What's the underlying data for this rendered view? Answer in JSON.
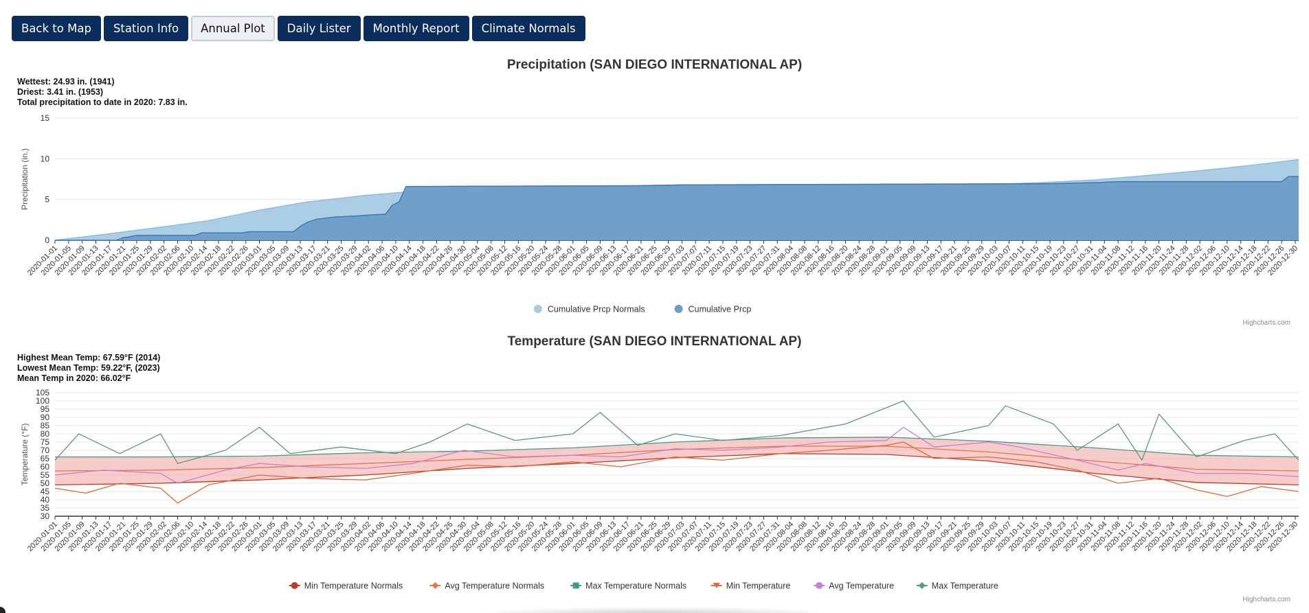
{
  "nav": {
    "buttons": [
      {
        "label": "Back to Map",
        "active": false
      },
      {
        "label": "Station Info",
        "active": false
      },
      {
        "label": "Annual Plot",
        "active": true
      },
      {
        "label": "Daily Lister",
        "active": false
      },
      {
        "label": "Monthly Report",
        "active": false
      },
      {
        "label": "Climate Normals",
        "active": false
      }
    ]
  },
  "precip": {
    "title": "Precipitation (SAN DIEGO INTERNATIONAL AP)",
    "notes": [
      "Wettest: 24.93 in. (1941)",
      "Driest: 3.41 in. (1953)",
      "Total precipitation to date in 2020: 7.83 in."
    ],
    "credit": "Highcharts.com"
  },
  "temp": {
    "title": "Temperature (SAN DIEGO INTERNATIONAL AP)",
    "notes": [
      "Highest Mean Temp: 67.59°F (2014)",
      "Lowest Mean Temp: 59.22°F, (2023)",
      "Mean Temp in 2020: 66.02°F"
    ],
    "credit": "Highcharts.com"
  },
  "chart_data": [
    {
      "type": "area",
      "title": "Precipitation (SAN DIEGO INTERNATIONAL AP)",
      "xlabel": "",
      "ylabel": "Precipitation (in.)",
      "ylim": [
        0,
        15
      ],
      "yticks": [
        0,
        5,
        10,
        15
      ],
      "grid": true,
      "legend_position": "bottom-center",
      "x_start": "2020-01-01",
      "x_end": "2020-12-31",
      "x_tick_interval_days": 4,
      "series": [
        {
          "name": "Cumulative Prcp Normals",
          "color": "#a8cbe4",
          "points": [
            [
              "2020-01-01",
              0
            ],
            [
              "2020-01-15",
              0.7
            ],
            [
              "2020-02-01",
              1.6
            ],
            [
              "2020-02-15",
              2.4
            ],
            [
              "2020-03-01",
              3.7
            ],
            [
              "2020-03-15",
              4.7
            ],
            [
              "2020-04-01",
              5.5
            ],
            [
              "2020-04-15",
              6.0
            ],
            [
              "2020-05-01",
              6.4
            ],
            [
              "2020-06-01",
              6.6
            ],
            [
              "2020-07-01",
              6.65
            ],
            [
              "2020-08-01",
              6.7
            ],
            [
              "2020-09-01",
              6.75
            ],
            [
              "2020-10-01",
              6.85
            ],
            [
              "2020-10-15",
              7.05
            ],
            [
              "2020-11-01",
              7.4
            ],
            [
              "2020-11-15",
              7.9
            ],
            [
              "2020-12-01",
              8.5
            ],
            [
              "2020-12-15",
              9.1
            ],
            [
              "2020-12-31",
              9.9
            ]
          ]
        },
        {
          "name": "Cumulative Prcp",
          "color": "#6c9dc8",
          "points": [
            [
              "2020-01-01",
              0
            ],
            [
              "2020-01-19",
              0
            ],
            [
              "2020-01-21",
              0.3
            ],
            [
              "2020-01-25",
              0.6
            ],
            [
              "2020-02-11",
              0.6
            ],
            [
              "2020-02-13",
              0.9
            ],
            [
              "2020-02-25",
              0.9
            ],
            [
              "2020-02-27",
              1.05
            ],
            [
              "2020-03-11",
              1.05
            ],
            [
              "2020-03-13",
              1.7
            ],
            [
              "2020-03-15",
              2.2
            ],
            [
              "2020-03-18",
              2.6
            ],
            [
              "2020-03-23",
              2.85
            ],
            [
              "2020-03-30",
              3.0
            ],
            [
              "2020-04-02",
              3.1
            ],
            [
              "2020-04-07",
              3.2
            ],
            [
              "2020-04-09",
              4.3
            ],
            [
              "2020-04-11",
              4.7
            ],
            [
              "2020-04-13",
              6.6
            ],
            [
              "2020-05-15",
              6.65
            ],
            [
              "2020-06-20",
              6.7
            ],
            [
              "2020-07-03",
              6.8
            ],
            [
              "2020-10-20",
              6.95
            ],
            [
              "2020-11-03",
              7.1
            ],
            [
              "2020-11-08",
              7.2
            ],
            [
              "2020-12-26",
              7.2
            ],
            [
              "2020-12-28",
              7.83
            ],
            [
              "2020-12-31",
              7.83
            ]
          ]
        }
      ]
    },
    {
      "type": "line",
      "title": "Temperature (SAN DIEGO INTERNATIONAL AP)",
      "xlabel": "",
      "ylabel": "Temperature (°F)",
      "ylim": [
        30,
        105
      ],
      "yticks": [
        30,
        35,
        40,
        45,
        50,
        55,
        60,
        65,
        70,
        75,
        80,
        85,
        90,
        95,
        100,
        105
      ],
      "grid": true,
      "legend_position": "bottom-center",
      "x_start": "2020-01-01",
      "x_end": "2020-12-31",
      "x_tick_interval_days": 4,
      "band": {
        "between": [
          "Min Temperature Normals",
          "Max Temperature Normals"
        ],
        "color": "#f4c1bd"
      },
      "series": [
        {
          "name": "Min Temperature Normals",
          "color": "#c0392b",
          "marker": "circle",
          "points": [
            [
              "2020-01-01",
              49
            ],
            [
              "2020-02-01",
              50
            ],
            [
              "2020-03-01",
              52
            ],
            [
              "2020-04-01",
              55
            ],
            [
              "2020-05-01",
              59
            ],
            [
              "2020-06-01",
              62
            ],
            [
              "2020-07-01",
              65.5
            ],
            [
              "2020-08-01",
              68
            ],
            [
              "2020-09-01",
              67.5
            ],
            [
              "2020-10-01",
              63.5
            ],
            [
              "2020-11-01",
              56
            ],
            [
              "2020-12-01",
              50.5
            ],
            [
              "2020-12-31",
              49
            ]
          ]
        },
        {
          "name": "Avg Temperature Normals",
          "color": "#e8744a",
          "marker": "diamond",
          "points": [
            [
              "2020-01-01",
              57.5
            ],
            [
              "2020-02-01",
              58
            ],
            [
              "2020-03-01",
              59.5
            ],
            [
              "2020-04-01",
              62
            ],
            [
              "2020-05-01",
              64.5
            ],
            [
              "2020-06-01",
              67
            ],
            [
              "2020-07-01",
              70.5
            ],
            [
              "2020-08-01",
              72.5
            ],
            [
              "2020-09-01",
              72.5
            ],
            [
              "2020-10-01",
              69
            ],
            [
              "2020-11-01",
              63.5
            ],
            [
              "2020-12-01",
              58.5
            ],
            [
              "2020-12-31",
              57.5
            ]
          ]
        },
        {
          "name": "Max Temperature Normals",
          "color": "#4a9a8c",
          "marker": "square",
          "points": [
            [
              "2020-01-01",
              66
            ],
            [
              "2020-02-01",
              66
            ],
            [
              "2020-03-01",
              66.5
            ],
            [
              "2020-04-01",
              68.5
            ],
            [
              "2020-05-01",
              69.5
            ],
            [
              "2020-06-01",
              71.5
            ],
            [
              "2020-07-01",
              75
            ],
            [
              "2020-08-01",
              77.5
            ],
            [
              "2020-09-01",
              78
            ],
            [
              "2020-10-01",
              75.5
            ],
            [
              "2020-11-01",
              71.5
            ],
            [
              "2020-12-01",
              67
            ],
            [
              "2020-12-31",
              66
            ]
          ]
        },
        {
          "name": "Min Temperature",
          "color": "#e06a3b",
          "marker": "triangle-down",
          "points": [
            [
              "2020-01-01",
              47
            ],
            [
              "2020-01-10",
              44
            ],
            [
              "2020-01-20",
              50
            ],
            [
              "2020-02-01",
              47
            ],
            [
              "2020-02-06",
              38
            ],
            [
              "2020-02-15",
              49
            ],
            [
              "2020-03-01",
              55
            ],
            [
              "2020-03-15",
              53
            ],
            [
              "2020-04-01",
              52
            ],
            [
              "2020-04-15",
              56
            ],
            [
              "2020-05-01",
              61
            ],
            [
              "2020-05-15",
              60
            ],
            [
              "2020-06-01",
              63
            ],
            [
              "2020-06-15",
              60
            ],
            [
              "2020-07-01",
              66
            ],
            [
              "2020-07-15",
              64
            ],
            [
              "2020-08-01",
              68
            ],
            [
              "2020-08-15",
              70
            ],
            [
              "2020-09-01",
              73
            ],
            [
              "2020-09-06",
              75
            ],
            [
              "2020-09-15",
              65
            ],
            [
              "2020-10-01",
              66
            ],
            [
              "2020-10-15",
              63
            ],
            [
              "2020-10-27",
              58
            ],
            [
              "2020-11-08",
              50
            ],
            [
              "2020-11-20",
              53
            ],
            [
              "2020-12-01",
              46
            ],
            [
              "2020-12-10",
              42
            ],
            [
              "2020-12-20",
              48
            ],
            [
              "2020-12-31",
              45
            ]
          ]
        },
        {
          "name": "Avg Temperature",
          "color": "#c77fd1",
          "marker": "circle",
          "points": [
            [
              "2020-01-01",
              55
            ],
            [
              "2020-01-15",
              58
            ],
            [
              "2020-02-01",
              56
            ],
            [
              "2020-02-06",
              50
            ],
            [
              "2020-02-20",
              58
            ],
            [
              "2020-03-01",
              62
            ],
            [
              "2020-03-15",
              60
            ],
            [
              "2020-04-01",
              59
            ],
            [
              "2020-04-15",
              62
            ],
            [
              "2020-04-30",
              70
            ],
            [
              "2020-05-15",
              66
            ],
            [
              "2020-06-01",
              67
            ],
            [
              "2020-06-15",
              66
            ],
            [
              "2020-07-01",
              71
            ],
            [
              "2020-07-15",
              70
            ],
            [
              "2020-08-01",
              72
            ],
            [
              "2020-08-15",
              75
            ],
            [
              "2020-09-01",
              76
            ],
            [
              "2020-09-06",
              84
            ],
            [
              "2020-09-15",
              72
            ],
            [
              "2020-10-01",
              75
            ],
            [
              "2020-10-10",
              72
            ],
            [
              "2020-10-27",
              64
            ],
            [
              "2020-11-08",
              58
            ],
            [
              "2020-11-16",
              62
            ],
            [
              "2020-12-01",
              56
            ],
            [
              "2020-12-15",
              56
            ],
            [
              "2020-12-31",
              54
            ]
          ]
        },
        {
          "name": "Max Temperature",
          "color": "#5b9a73",
          "marker": "diamond",
          "points": [
            [
              "2020-01-01",
              64
            ],
            [
              "2020-01-08",
              80
            ],
            [
              "2020-01-20",
              68
            ],
            [
              "2020-02-01",
              80
            ],
            [
              "2020-02-06",
              62
            ],
            [
              "2020-02-20",
              70
            ],
            [
              "2020-03-01",
              84
            ],
            [
              "2020-03-10",
              68
            ],
            [
              "2020-03-25",
              72
            ],
            [
              "2020-04-10",
              68
            ],
            [
              "2020-04-20",
              75
            ],
            [
              "2020-05-01",
              86
            ],
            [
              "2020-05-15",
              76
            ],
            [
              "2020-06-01",
              80
            ],
            [
              "2020-06-09",
              93
            ],
            [
              "2020-06-20",
              73
            ],
            [
              "2020-07-01",
              80
            ],
            [
              "2020-07-15",
              76
            ],
            [
              "2020-08-01",
              79
            ],
            [
              "2020-08-20",
              86
            ],
            [
              "2020-09-06",
              100
            ],
            [
              "2020-09-15",
              78
            ],
            [
              "2020-10-01",
              85
            ],
            [
              "2020-10-06",
              97
            ],
            [
              "2020-10-20",
              86
            ],
            [
              "2020-10-27",
              70
            ],
            [
              "2020-11-08",
              86
            ],
            [
              "2020-11-15",
              64
            ],
            [
              "2020-11-20",
              92
            ],
            [
              "2020-12-01",
              66
            ],
            [
              "2020-12-15",
              76
            ],
            [
              "2020-12-24",
              80
            ],
            [
              "2020-12-31",
              64
            ]
          ]
        }
      ]
    }
  ]
}
